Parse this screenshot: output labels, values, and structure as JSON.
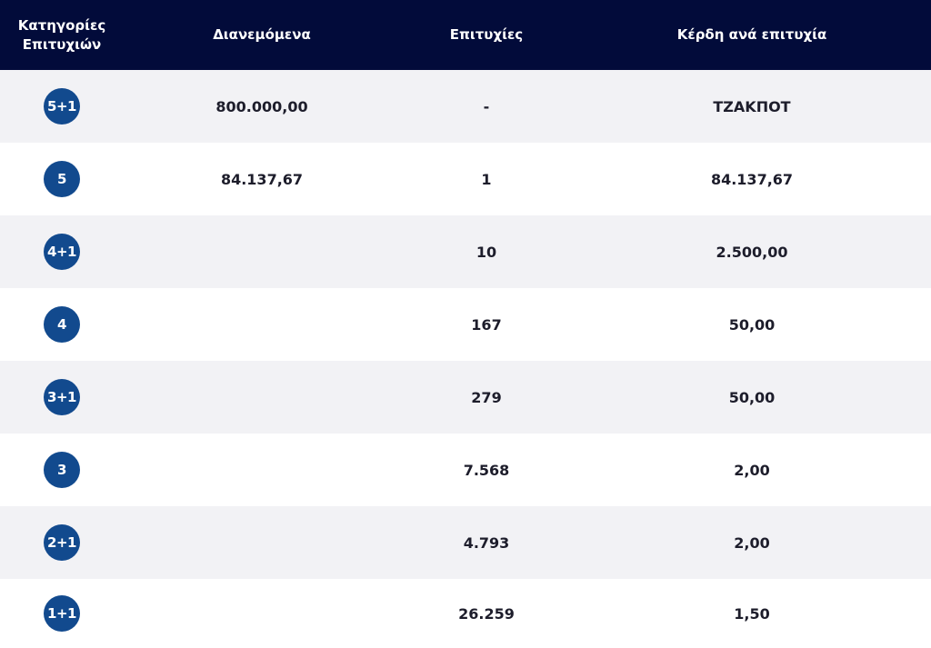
{
  "header": {
    "category": "Κατηγορίες Επιτυχιών",
    "distributed": "Διανεμόμενα",
    "winners": "Επιτυχίες",
    "prize": "Κέρδη ανά επιτυχία"
  },
  "rows": [
    {
      "category": "5+1",
      "distributed": "800.000,00",
      "winners": "-",
      "prize": "ΤΖΑΚΠΟΤ"
    },
    {
      "category": "5",
      "distributed": "84.137,67",
      "winners": "1",
      "prize": "84.137,67"
    },
    {
      "category": "4+1",
      "winners": "10",
      "prize": "2.500,00"
    },
    {
      "category": "4",
      "winners": "167",
      "prize": "50,00"
    },
    {
      "category": "3+1",
      "winners": "279",
      "prize": "50,00"
    },
    {
      "category": "3",
      "winners": "7.568",
      "prize": "2,00"
    },
    {
      "category": "2+1",
      "winners": "4.793",
      "prize": "2,00"
    },
    {
      "category": "1+1",
      "winners": "26.259",
      "prize": "1,50"
    }
  ]
}
